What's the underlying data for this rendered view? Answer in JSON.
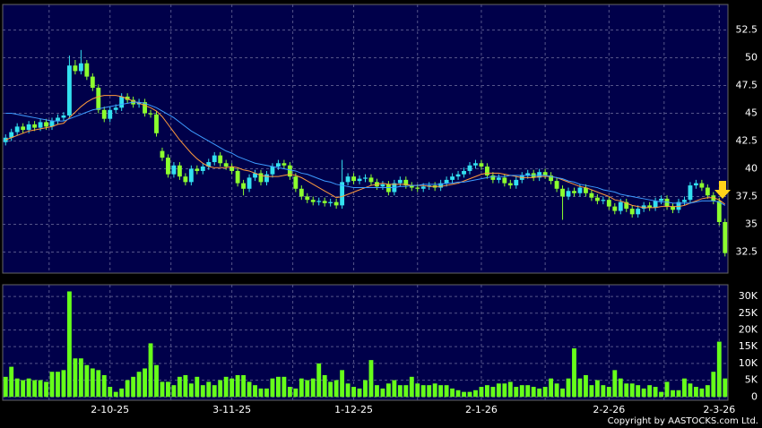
{
  "chart_data": {
    "type": "candlestick",
    "up_color": "#33e0f0",
    "down_color": "#8cff2e",
    "volume_color": "#66ff1a",
    "grid": true,
    "categories": [
      null,
      null,
      null,
      null,
      null,
      null,
      null,
      null,
      null,
      null,
      null,
      null,
      null,
      null,
      null,
      null,
      null,
      null,
      "2-10-25",
      null,
      null,
      null,
      null,
      null,
      null,
      null,
      null,
      null,
      null,
      null,
      null,
      null,
      null,
      null,
      null,
      null,
      null,
      null,
      null,
      "3-11-25",
      null,
      null,
      null,
      null,
      null,
      null,
      null,
      null,
      null,
      null,
      null,
      null,
      null,
      null,
      null,
      null,
      null,
      null,
      null,
      null,
      "1-12-25",
      null,
      null,
      null,
      null,
      null,
      null,
      null,
      null,
      null,
      null,
      null,
      null,
      null,
      null,
      null,
      null,
      null,
      null,
      null,
      null,
      null,
      "2-1-26",
      null,
      null,
      null,
      null,
      null,
      null,
      null,
      null,
      null,
      null,
      null,
      null,
      null,
      null,
      null,
      null,
      null,
      null,
      null,
      null,
      null,
      "2-2-26",
      null,
      null,
      null,
      null,
      null,
      null,
      null,
      null,
      null,
      null,
      null,
      null,
      null,
      null,
      null,
      null,
      null,
      null,
      "2-3-26",
      null
    ],
    "candles": [
      [
        42.4,
        43.1,
        42.1,
        42.8
      ],
      [
        42.8,
        43.6,
        42.5,
        43.3
      ],
      [
        43.3,
        44.1,
        43,
        43.8
      ],
      [
        43.8,
        44.1,
        43.2,
        43.5
      ],
      [
        43.5,
        44.3,
        43.2,
        44
      ],
      [
        44,
        44.3,
        43.4,
        43.7
      ],
      [
        43.7,
        44.5,
        43.4,
        44.2
      ],
      [
        44.2,
        44.5,
        43.5,
        43.8
      ],
      [
        43.8,
        44.6,
        43.5,
        44.3
      ],
      [
        44.3,
        44.9,
        44,
        44.6
      ],
      [
        44.6,
        45.1,
        44.3,
        44.8
      ],
      [
        44.8,
        50.2,
        44.6,
        49.3
      ],
      [
        49.3,
        49.8,
        48.5,
        48.8
      ],
      [
        48.8,
        50.7,
        48.5,
        49.5
      ],
      [
        49.5,
        49.8,
        48,
        48.3
      ],
      [
        48.3,
        48.6,
        47,
        47.3
      ],
      [
        47.3,
        47.6,
        45,
        45.3
      ],
      [
        45.3,
        45.6,
        44.2,
        44.5
      ],
      [
        44.5,
        45.6,
        44.2,
        45.3
      ],
      [
        45.3,
        45.8,
        45,
        45.5
      ],
      [
        45.5,
        46.8,
        45.2,
        46.5
      ],
      [
        46.5,
        46.8,
        45.9,
        46.2
      ],
      [
        46.2,
        46.5,
        45.5,
        45.8
      ],
      [
        45.8,
        46.3,
        45.5,
        46
      ],
      [
        46,
        46.3,
        44.7,
        45
      ],
      [
        45,
        45.3,
        44.6,
        44.9
      ],
      [
        44.9,
        45.2,
        42.9,
        43.2
      ],
      [
        41.6,
        41.9,
        40.7,
        41
      ],
      [
        41,
        41.3,
        39.2,
        39.5
      ],
      [
        39.5,
        40.6,
        39.2,
        40.3
      ],
      [
        40.3,
        40.6,
        39,
        39.3
      ],
      [
        39.3,
        39.6,
        38.5,
        38.8
      ],
      [
        38.8,
        40.3,
        38.5,
        40
      ],
      [
        40,
        40.3,
        39.5,
        39.8
      ],
      [
        39.8,
        40.5,
        39.5,
        40.2
      ],
      [
        40.2,
        40.9,
        39.9,
        40.6
      ],
      [
        40.6,
        41.5,
        40.3,
        41.2
      ],
      [
        41.2,
        41.5,
        40.2,
        40.5
      ],
      [
        40.5,
        40.8,
        39.9,
        40.2
      ],
      [
        40.2,
        40.5,
        39.5,
        39.8
      ],
      [
        39.8,
        40.1,
        38.4,
        38.7
      ],
      [
        38.7,
        39,
        37.6,
        38.2
      ],
      [
        38.2,
        39.5,
        37.9,
        39.2
      ],
      [
        39.2,
        39.9,
        38.9,
        39.6
      ],
      [
        39.6,
        39.9,
        38.5,
        38.8
      ],
      [
        38.8,
        39.8,
        38.5,
        39.5
      ],
      [
        39.5,
        40.5,
        39.2,
        40.2
      ],
      [
        40.2,
        40.8,
        39.9,
        40.5
      ],
      [
        40.5,
        40.8,
        40,
        40.3
      ],
      [
        40.3,
        40.6,
        39,
        39.3
      ],
      [
        39.3,
        39.6,
        37.9,
        38.2
      ],
      [
        38.2,
        38.5,
        37.2,
        37.5
      ],
      [
        37.5,
        37.8,
        36.9,
        37.2
      ],
      [
        37.2,
        37.5,
        36.7,
        37
      ],
      [
        37,
        37.4,
        36.7,
        37.1
      ],
      [
        37.1,
        37.4,
        36.6,
        36.9
      ],
      [
        36.9,
        37.3,
        36.6,
        37
      ],
      [
        37,
        37.3,
        36.4,
        36.7
      ],
      [
        36.7,
        40.8,
        36.4,
        38.8
      ],
      [
        38.8,
        39.6,
        38.5,
        39.3
      ],
      [
        39.3,
        39.6,
        38.6,
        38.9
      ],
      [
        38.9,
        39.4,
        38.6,
        39.1
      ],
      [
        39.1,
        39.5,
        38.8,
        39.2
      ],
      [
        39.2,
        39.5,
        38.5,
        38.8
      ],
      [
        38.8,
        39.1,
        38.1,
        38.4
      ],
      [
        38.4,
        38.9,
        38.1,
        38.6
      ],
      [
        38.6,
        38.9,
        37.6,
        37.9
      ],
      [
        37.9,
        39,
        37.6,
        38.7
      ],
      [
        38.7,
        39.3,
        38.4,
        39
      ],
      [
        39,
        39.3,
        38.2,
        38.5
      ],
      [
        38.5,
        38.8,
        38,
        38.3
      ],
      [
        38.3,
        38.6,
        37.9,
        38.2
      ],
      [
        38.2,
        38.7,
        37.9,
        38.4
      ],
      [
        38.4,
        38.8,
        38.1,
        38.5
      ],
      [
        38.5,
        38.8,
        38,
        38.3
      ],
      [
        38.3,
        39,
        38,
        38.7
      ],
      [
        38.7,
        39.3,
        38.4,
        39
      ],
      [
        39,
        39.6,
        38.7,
        39.3
      ],
      [
        39.3,
        39.8,
        39,
        39.5
      ],
      [
        39.5,
        40.1,
        39.2,
        39.8
      ],
      [
        39.8,
        40.6,
        39.5,
        40.3
      ],
      [
        40.3,
        40.8,
        40,
        40.5
      ],
      [
        40.5,
        40.8,
        39.9,
        40.2
      ],
      [
        40.2,
        40.5,
        39.1,
        39.4
      ],
      [
        39.4,
        39.7,
        38.7,
        39
      ],
      [
        39,
        39.5,
        38.7,
        39.2
      ],
      [
        39.2,
        39.5,
        38.4,
        38.7
      ],
      [
        38.7,
        39,
        38.2,
        38.5
      ],
      [
        38.5,
        39.3,
        38.2,
        39
      ],
      [
        39,
        39.7,
        38.7,
        39.4
      ],
      [
        39.4,
        39.9,
        39.1,
        39.6
      ],
      [
        39.6,
        39.9,
        38.9,
        39.2
      ],
      [
        39.2,
        40,
        38.9,
        39.7
      ],
      [
        39.7,
        40,
        39.1,
        39.4
      ],
      [
        39.4,
        39.7,
        38.6,
        38.9
      ],
      [
        38.9,
        39.2,
        37.9,
        38.2
      ],
      [
        38.2,
        38.5,
        35.4,
        37.5
      ],
      [
        37.5,
        38.3,
        37.2,
        38
      ],
      [
        38,
        38.3,
        37.5,
        37.8
      ],
      [
        37.8,
        38.6,
        37.5,
        38.3
      ],
      [
        38.3,
        38.6,
        37.5,
        37.8
      ],
      [
        37.8,
        38.1,
        37.1,
        37.4
      ],
      [
        37.4,
        37.7,
        36.8,
        37.1
      ],
      [
        37.1,
        37.5,
        36.8,
        37.2
      ],
      [
        37.2,
        37.5,
        36.3,
        36.6
      ],
      [
        36.6,
        36.9,
        35.9,
        36.2
      ],
      [
        36.2,
        37.3,
        35.9,
        37
      ],
      [
        37,
        37.3,
        36.1,
        36.4
      ],
      [
        36.4,
        36.7,
        35.6,
        35.9
      ],
      [
        35.9,
        36.7,
        35.6,
        36.4
      ],
      [
        36.4,
        37,
        36.1,
        36.7
      ],
      [
        36.7,
        37,
        36.2,
        36.5
      ],
      [
        36.5,
        37.4,
        36.2,
        37.1
      ],
      [
        37.1,
        37.6,
        36.8,
        37.3
      ],
      [
        37.3,
        37.6,
        36.3,
        36.6
      ],
      [
        36.6,
        36.9,
        36,
        36.3
      ],
      [
        36.3,
        37.3,
        36,
        37
      ],
      [
        37,
        37.5,
        36.7,
        37.2
      ],
      [
        37.2,
        38.8,
        36.9,
        38.5
      ],
      [
        38.5,
        39,
        38.2,
        38.7
      ],
      [
        38.7,
        39,
        38,
        38.3
      ],
      [
        38.3,
        38.6,
        37.3,
        37.6
      ],
      [
        37.6,
        37.9,
        36.8,
        37.1
      ],
      [
        37.1,
        37.4,
        34.9,
        35.2
      ],
      [
        35.2,
        35.5,
        32.1,
        32.4
      ]
    ],
    "series": [
      {
        "color": "#ff9a3c",
        "values": [
          42.6,
          42.8,
          43,
          43.2,
          43.4,
          43.5,
          43.6,
          43.7,
          43.8,
          44,
          44.1,
          44.6,
          45.1,
          45.6,
          46,
          46.3,
          46.5,
          46.6,
          46.6,
          46.6,
          46.5,
          46.3,
          46.1,
          45.9,
          45.7,
          45.5,
          45.2,
          44.7,
          44,
          43.3,
          42.6,
          42,
          41.4,
          40.9,
          40.5,
          40.2,
          40.1,
          40.1,
          40.1,
          40.2,
          40.1,
          39.9,
          39.8,
          39.6,
          39.4,
          39.3,
          39.3,
          39.3,
          39.4,
          39.5,
          39.4,
          39.2,
          38.9,
          38.6,
          38.3,
          38,
          37.7,
          37.4,
          37.5,
          37.7,
          37.9,
          38.1,
          38.3,
          38.5,
          38.6,
          38.7,
          38.6,
          38.6,
          38.6,
          38.6,
          38.5,
          38.5,
          38.5,
          38.4,
          38.4,
          38.4,
          38.5,
          38.6,
          38.7,
          38.9,
          39.1,
          39.3,
          39.5,
          39.6,
          39.6,
          39.6,
          39.5,
          39.4,
          39.3,
          39.2,
          39.2,
          39.2,
          39.3,
          39.3,
          39.3,
          39.2,
          39,
          38.8,
          38.6,
          38.4,
          38.3,
          38.1,
          37.9,
          37.7,
          37.5,
          37.2,
          37.1,
          36.9,
          36.7,
          36.6,
          36.5,
          36.5,
          36.5,
          36.6,
          36.6,
          36.6,
          36.6,
          36.7,
          36.9,
          37.1,
          37.3,
          37.4,
          37.4,
          37.2,
          36.8
        ]
      },
      {
        "color": "#3d9bff",
        "values": [
          45,
          45,
          44.9,
          44.8,
          44.7,
          44.6,
          44.5,
          44.4,
          44.3,
          44.3,
          44.3,
          44.5,
          44.7,
          44.9,
          45.1,
          45.3,
          45.4,
          45.5,
          45.6,
          45.7,
          45.8,
          45.9,
          46,
          46,
          45.9,
          45.7,
          45.5,
          45.2,
          44.9,
          44.6,
          44.2,
          43.8,
          43.4,
          43.1,
          42.8,
          42.5,
          42.2,
          41.9,
          41.6,
          41.4,
          41.1,
          40.9,
          40.7,
          40.5,
          40.4,
          40.3,
          40.2,
          40.1,
          40,
          39.9,
          39.8,
          39.6,
          39.5,
          39.3,
          39.1,
          38.9,
          38.8,
          38.6,
          38.5,
          38.4,
          38.3,
          38.3,
          38.3,
          38.3,
          38.3,
          38.3,
          38.3,
          38.3,
          38.4,
          38.4,
          38.5,
          38.5,
          38.6,
          38.6,
          38.6,
          38.6,
          38.7,
          38.7,
          38.8,
          38.8,
          38.9,
          39,
          39.1,
          39.2,
          39.3,
          39.3,
          39.3,
          39.4,
          39.4,
          39.4,
          39.4,
          39.4,
          39.4,
          39.4,
          39.3,
          39.2,
          39.1,
          38.9,
          38.8,
          38.6,
          38.5,
          38.4,
          38.3,
          38.1,
          38,
          37.9,
          37.7,
          37.6,
          37.5,
          37.4,
          37.3,
          37.2,
          37.1,
          37,
          37,
          36.9,
          36.9,
          36.9,
          36.9,
          37,
          37.1,
          37.1,
          37.1,
          37,
          36.7
        ]
      }
    ],
    "volume": [
      6000,
      9000,
      5500,
      5000,
      5500,
      5000,
      5000,
      4500,
      7500,
      7500,
      8000,
      31500,
      11500,
      11500,
      9500,
      8500,
      8000,
      6500,
      3000,
      1500,
      2500,
      5000,
      6000,
      7500,
      8500,
      16000,
      9500,
      4500,
      4500,
      3500,
      6000,
      6500,
      4000,
      6000,
      3500,
      4500,
      3500,
      5000,
      6000,
      5500,
      6500,
      6500,
      4500,
      3500,
      2500,
      2500,
      5500,
      6000,
      6000,
      3000,
      2500,
      5500,
      5000,
      5500,
      10000,
      6500,
      4500,
      5000,
      8000,
      4000,
      3000,
      2500,
      5000,
      11000,
      3500,
      2500,
      4000,
      5000,
      3500,
      3500,
      6000,
      4000,
      3500,
      3500,
      4000,
      3500,
      3500,
      2500,
      2000,
      1500,
      1500,
      2000,
      3000,
      3500,
      3000,
      4000,
      4000,
      4500,
      3000,
      3500,
      3500,
      3000,
      2500,
      3000,
      5500,
      4000,
      2500,
      5500,
      14500,
      5500,
      6500,
      3500,
      5000,
      3500,
      3000,
      8000,
      5500,
      4000,
      4000,
      3500,
      2500,
      3500,
      3000,
      1500,
      4500,
      2000,
      2000,
      5500,
      4000,
      3000,
      2500,
      3500,
      7500,
      16500,
      5500
    ],
    "ylim": [
      30.6,
      54.8
    ],
    "yticks": [
      32.5,
      35,
      37.5,
      40,
      42.5,
      45,
      47.5,
      50,
      52.5
    ],
    "y2lim": [
      -1000,
      33500
    ],
    "y2ticks": [
      0,
      {
        "value": 5000,
        "label": "5K"
      },
      {
        "value": 10000,
        "label": "10K"
      },
      {
        "value": 15000,
        "label": "15K"
      },
      {
        "value": 20000,
        "label": "20K"
      },
      {
        "value": 25000,
        "label": "25K"
      },
      {
        "value": 30000,
        "label": "30K"
      }
    ],
    "copyright": "Copyright by AASTOCKS.com Ltd."
  }
}
